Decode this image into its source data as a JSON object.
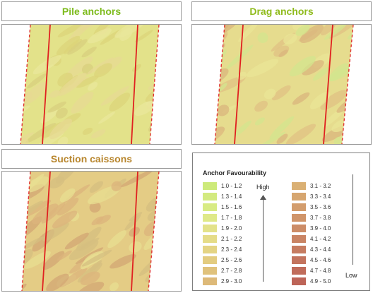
{
  "panels": {
    "pile": {
      "title": "Pile anchors",
      "title_color": "#7dbb1c",
      "base_color": "#e3e28a",
      "patch_colors": [
        "#dcd47a",
        "#e7d993",
        "#d8cf7e",
        "#e9e79b"
      ]
    },
    "drag": {
      "title": "Drag anchors",
      "title_color": "#8fbb1c",
      "base_color": "#e6dc8e",
      "patch_colors": [
        "#e0c283",
        "#d9b67c",
        "#e9e595",
        "#d3e58d"
      ]
    },
    "suction": {
      "title": "Suction caissons",
      "title_color": "#b8862d",
      "base_color": "#e4cc85",
      "patch_colors": [
        "#dcb47c",
        "#d3a774",
        "#e8df92",
        "#d6bf80"
      ]
    }
  },
  "colors": {
    "boundary_dashed": "#e03030",
    "centre_lines": "#e02020"
  },
  "legend": {
    "title": "Anchor Favourability",
    "high_label": "High",
    "low_label": "Low",
    "left_items": [
      {
        "label": "1.0 - 1.2",
        "color": "#cdea7a"
      },
      {
        "label": "1.3 - 1.4",
        "color": "#d3ea80"
      },
      {
        "label": "1.5 - 1.6",
        "color": "#d8eb84"
      },
      {
        "label": "1.7 - 1.8",
        "color": "#dfe989"
      },
      {
        "label": "1.9 - 2.0",
        "color": "#e3e28a"
      },
      {
        "label": "2.1 - 2.2",
        "color": "#e5dc88"
      },
      {
        "label": "2.3 - 2.4",
        "color": "#e4d484"
      },
      {
        "label": "2.5 - 2.6",
        "color": "#e3cc80"
      },
      {
        "label": "2.7 - 2.8",
        "color": "#e0c27c"
      },
      {
        "label": "2.9 - 3.0",
        "color": "#ddb978"
      }
    ],
    "right_items": [
      {
        "label": "3.1 - 3.2",
        "color": "#dab074"
      },
      {
        "label": "3.3 - 3.4",
        "color": "#d6a670"
      },
      {
        "label": "3.5 - 3.6",
        "color": "#d39d6d"
      },
      {
        "label": "3.7 - 3.8",
        "color": "#d0956a"
      },
      {
        "label": "3.9 - 4.0",
        "color": "#cc8c67"
      },
      {
        "label": "4.1 - 4.2",
        "color": "#c98464"
      },
      {
        "label": "4.3 - 4.4",
        "color": "#c67c61"
      },
      {
        "label": "4.5 - 4.6",
        "color": "#c3745e"
      },
      {
        "label": "4.7 - 4.8",
        "color": "#c06c5b"
      },
      {
        "label": "4.9 - 5.0",
        "color": "#bd6458"
      }
    ]
  }
}
